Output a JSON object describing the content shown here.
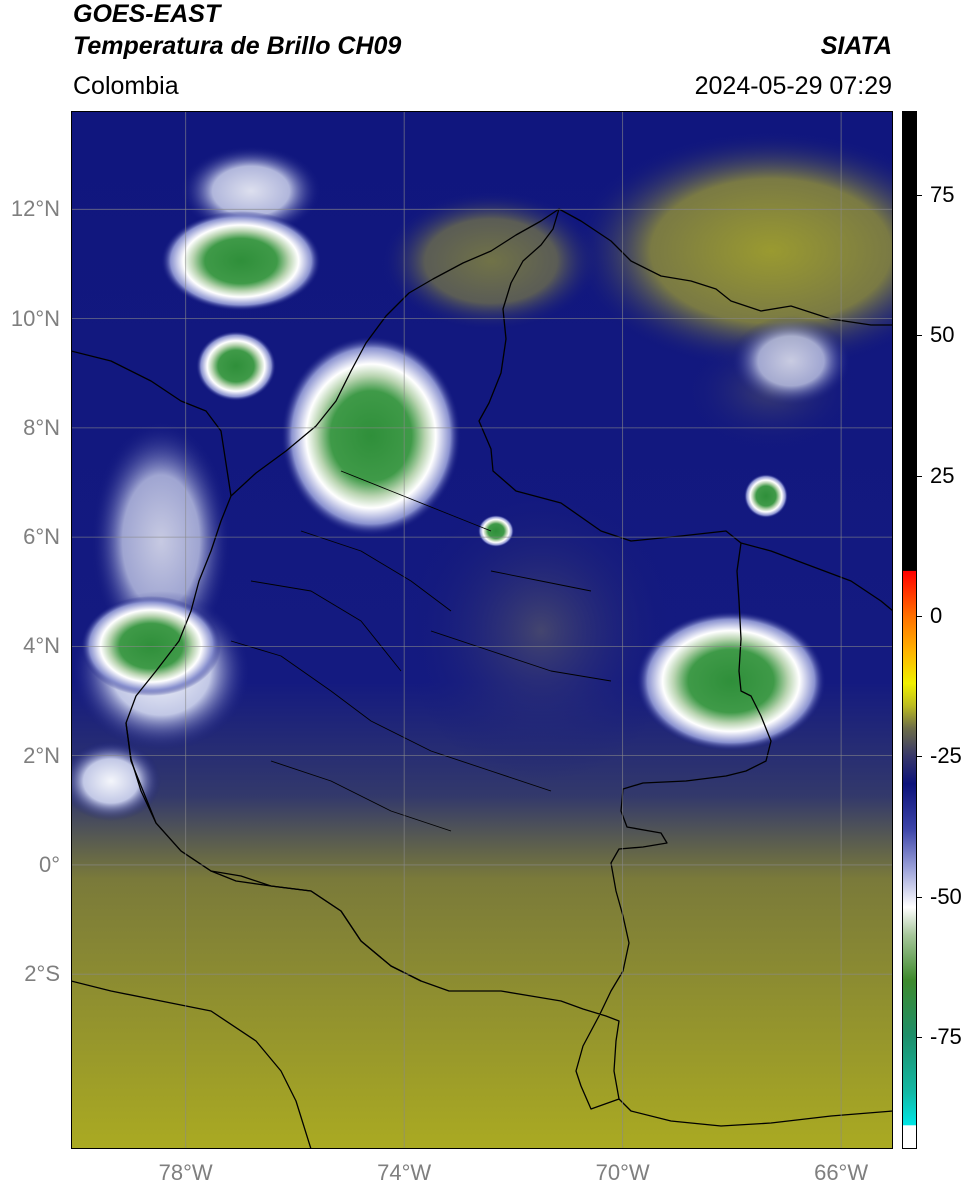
{
  "header": {
    "satellite": "GOES-EAST",
    "product": "Temperatura de Brillo CH09",
    "brand": "SIATA",
    "region": "Colombia",
    "datetime": "2024-05-29 07:29"
  },
  "map": {
    "lon_range": [
      -80.1,
      -65.05
    ],
    "lat_range": [
      -5.2,
      13.8
    ],
    "lat_ticks": [
      {
        "value": 12,
        "label": "12°N"
      },
      {
        "value": 10,
        "label": "10°N"
      },
      {
        "value": 8,
        "label": "8°N"
      },
      {
        "value": 6,
        "label": "6°N"
      },
      {
        "value": 4,
        "label": "4°N"
      },
      {
        "value": 2,
        "label": "2°N"
      },
      {
        "value": 0,
        "label": "0°"
      },
      {
        "value": -2,
        "label": "2°S"
      }
    ],
    "lon_ticks": [
      {
        "value": -78,
        "label": "78°W"
      },
      {
        "value": -74,
        "label": "74°W"
      },
      {
        "value": -70,
        "label": "70°W"
      },
      {
        "value": -66,
        "label": "66°W"
      }
    ],
    "gridlines": true,
    "colors": {
      "deep_blue": "#10167e",
      "olive": "#9a9a28",
      "gray": "#4a4a5a",
      "green": "#2f8f3a",
      "white": "#e8ecf4",
      "border": "#000000"
    }
  },
  "colorbar": {
    "range": [
      -95,
      90
    ],
    "ticks": [
      {
        "value": 75,
        "label": "75"
      },
      {
        "value": 50,
        "label": "50"
      },
      {
        "value": 25,
        "label": "25"
      },
      {
        "value": 0,
        "label": "0"
      },
      {
        "value": -25,
        "label": "-25"
      },
      {
        "value": -50,
        "label": "-50"
      },
      {
        "value": -75,
        "label": "-75"
      }
    ],
    "stops": [
      {
        "value": -95,
        "color": "#ffffff"
      },
      {
        "value": -91,
        "color": "#ffffff"
      },
      {
        "value": -90.9,
        "color": "#00e5e5"
      },
      {
        "value": -85,
        "color": "#12b8a4"
      },
      {
        "value": -75,
        "color": "#1e8f6a"
      },
      {
        "value": -65,
        "color": "#3e8a2c"
      },
      {
        "value": -57,
        "color": "#a6c79a"
      },
      {
        "value": -52,
        "color": "#ffffff"
      },
      {
        "value": -45,
        "color": "#9aa0d8"
      },
      {
        "value": -38,
        "color": "#3c44a8"
      },
      {
        "value": -30,
        "color": "#0c127a"
      },
      {
        "value": -25,
        "color": "#38386a"
      },
      {
        "value": -20,
        "color": "#6e6e48"
      },
      {
        "value": -16,
        "color": "#bcbc20"
      },
      {
        "value": -12,
        "color": "#f0f000"
      },
      {
        "value": -6,
        "color": "#ffb000"
      },
      {
        "value": 0,
        "color": "#ff7000"
      },
      {
        "value": 8,
        "color": "#ff0000"
      },
      {
        "value": 8.1,
        "color": "#000000"
      },
      {
        "value": 90,
        "color": "#000000"
      }
    ]
  }
}
